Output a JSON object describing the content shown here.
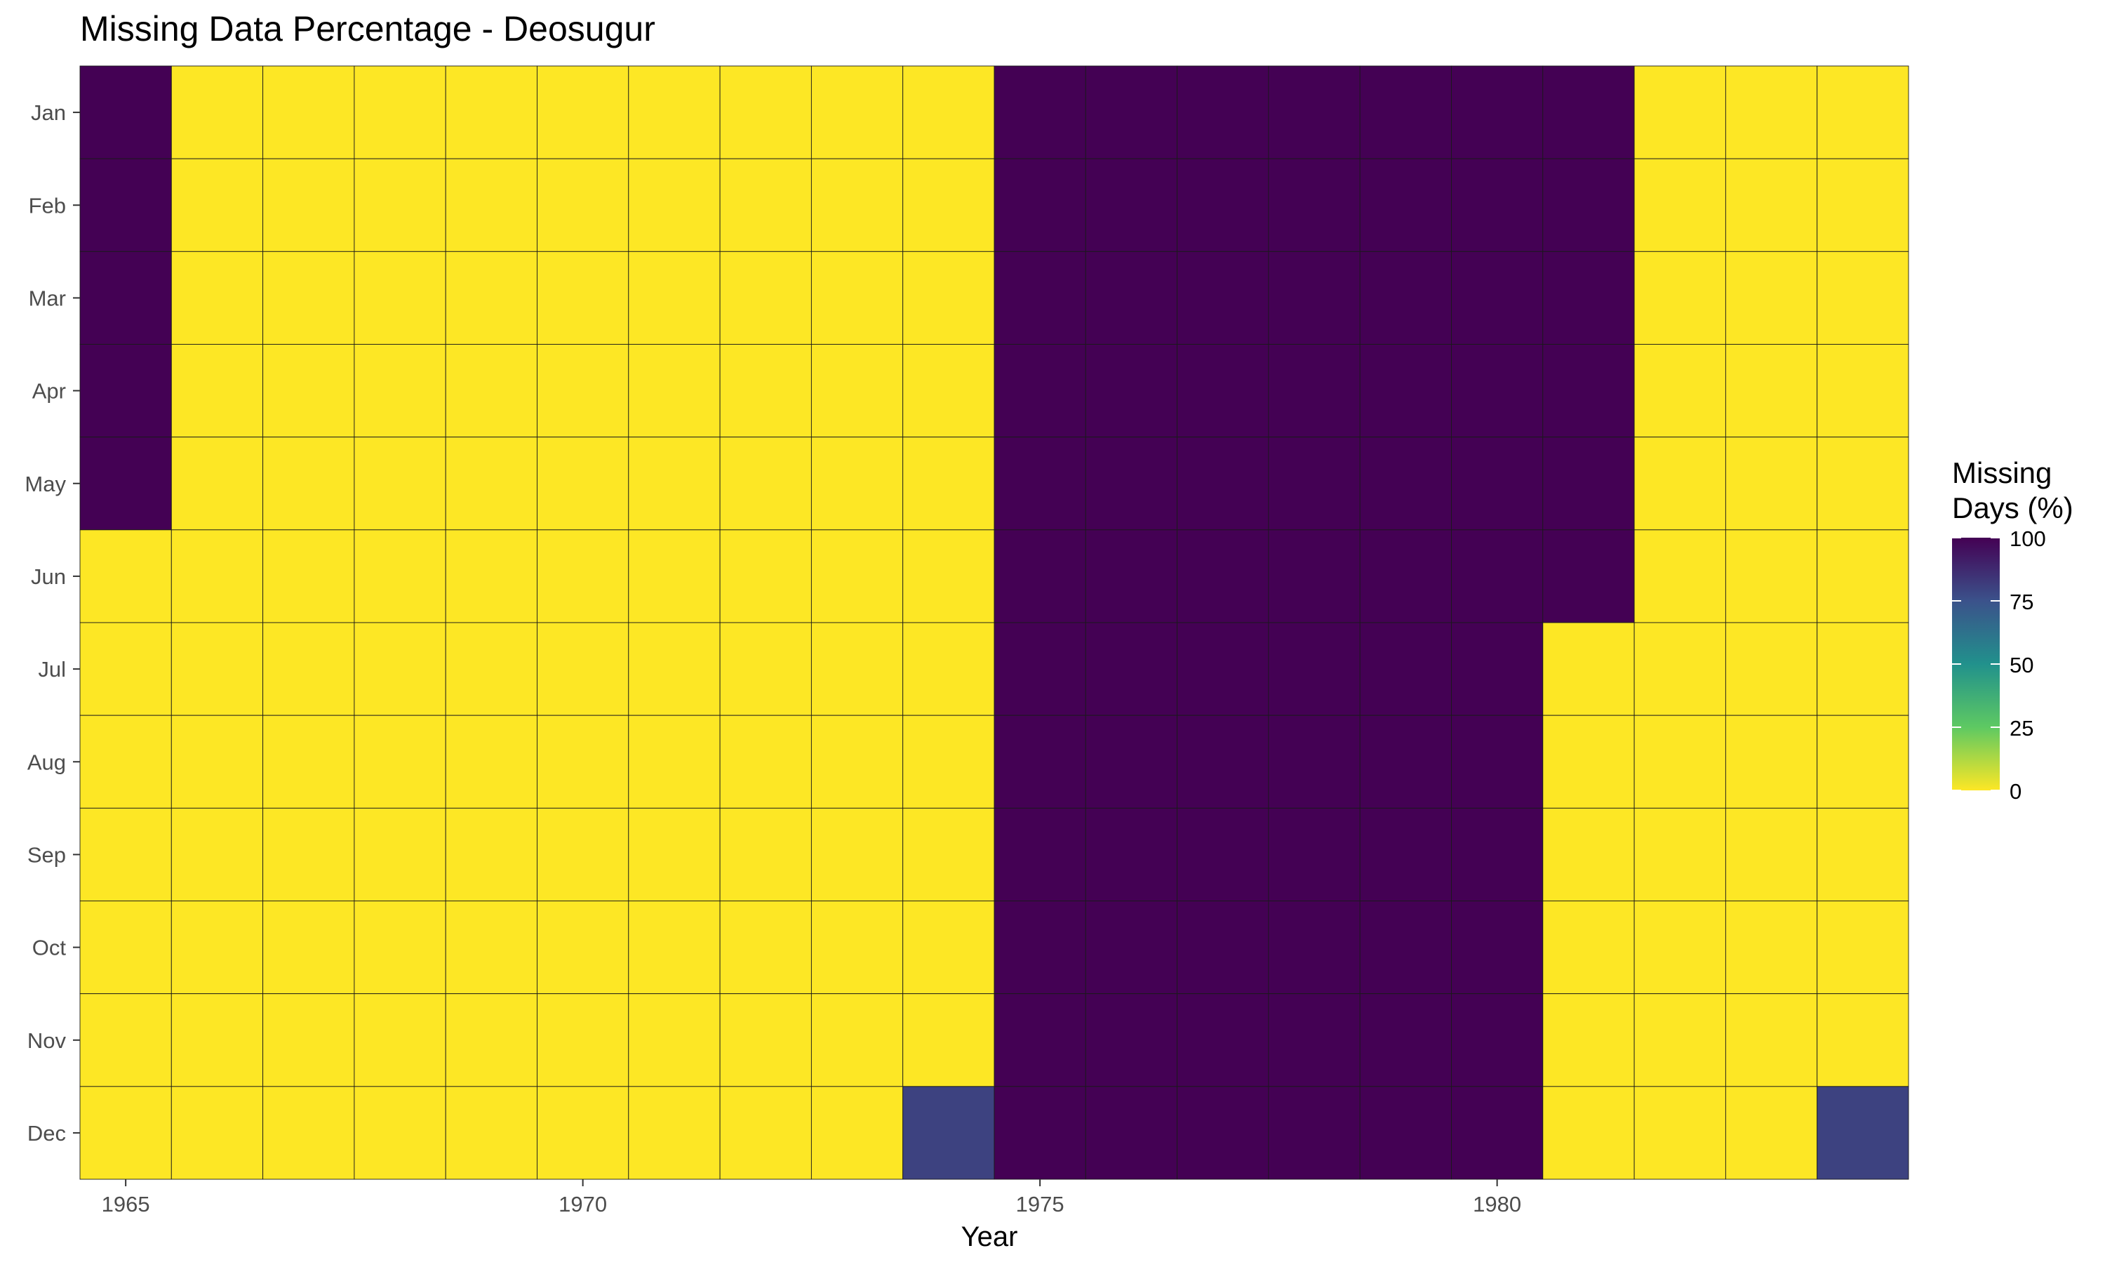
{
  "chart_data": {
    "type": "heatmap",
    "title": "Missing Data Percentage - Deosugur",
    "xlabel": "Year",
    "ylabel": "",
    "x": [
      1965,
      1966,
      1967,
      1968,
      1969,
      1970,
      1971,
      1972,
      1973,
      1974,
      1975,
      1976,
      1977,
      1978,
      1979,
      1980,
      1981,
      1982,
      1983,
      1984
    ],
    "x_ticks": [
      "1965",
      "1970",
      "1975",
      "1980"
    ],
    "y": [
      "Jan",
      "Feb",
      "Mar",
      "Apr",
      "May",
      "Jun",
      "Jul",
      "Aug",
      "Sep",
      "Oct",
      "Nov",
      "Dec"
    ],
    "values_by_year": [
      [
        100,
        100,
        100,
        100,
        100,
        0,
        0,
        0,
        0,
        0,
        0,
        0
      ],
      [
        0,
        0,
        0,
        0,
        0,
        0,
        0,
        0,
        0,
        0,
        0,
        0
      ],
      [
        0,
        0,
        0,
        0,
        0,
        0,
        0,
        0,
        0,
        0,
        0,
        0
      ],
      [
        0,
        0,
        0,
        0,
        0,
        0,
        0,
        0,
        0,
        0,
        0,
        0
      ],
      [
        0,
        0,
        0,
        0,
        0,
        0,
        0,
        0,
        0,
        0,
        0,
        0
      ],
      [
        0,
        0,
        0,
        0,
        0,
        0,
        0,
        0,
        0,
        0,
        0,
        0
      ],
      [
        0,
        0,
        0,
        0,
        0,
        0,
        0,
        0,
        0,
        0,
        0,
        0
      ],
      [
        0,
        0,
        0,
        0,
        0,
        0,
        0,
        0,
        0,
        0,
        0,
        0
      ],
      [
        0,
        0,
        0,
        0,
        0,
        0,
        0,
        0,
        0,
        0,
        0,
        0
      ],
      [
        0,
        0,
        0,
        0,
        0,
        0,
        0,
        0,
        0,
        0,
        0,
        80
      ],
      [
        100,
        100,
        100,
        100,
        100,
        100,
        100,
        100,
        100,
        100,
        100,
        100
      ],
      [
        100,
        100,
        100,
        100,
        100,
        100,
        100,
        100,
        100,
        100,
        100,
        100
      ],
      [
        100,
        100,
        100,
        100,
        100,
        100,
        100,
        100,
        100,
        100,
        100,
        100
      ],
      [
        100,
        100,
        100,
        100,
        100,
        100,
        100,
        100,
        100,
        100,
        100,
        100
      ],
      [
        100,
        100,
        100,
        100,
        100,
        100,
        100,
        100,
        100,
        100,
        100,
        100
      ],
      [
        100,
        100,
        100,
        100,
        100,
        100,
        100,
        100,
        100,
        100,
        100,
        100
      ],
      [
        100,
        100,
        100,
        100,
        100,
        100,
        0,
        0,
        0,
        0,
        0,
        0
      ],
      [
        0,
        0,
        0,
        0,
        0,
        0,
        0,
        0,
        0,
        0,
        0,
        0
      ],
      [
        0,
        0,
        0,
        0,
        0,
        0,
        0,
        0,
        0,
        0,
        0,
        0
      ],
      [
        0,
        0,
        0,
        0,
        0,
        0,
        0,
        0,
        0,
        0,
        0,
        80
      ]
    ],
    "value_range": [
      0,
      100
    ],
    "legend": {
      "title_lines": [
        "Missing",
        "Days (%)"
      ],
      "ticks": [
        "100",
        "75",
        "50",
        "25",
        "0"
      ],
      "position": "right"
    },
    "colorscale": [
      "#fde725",
      "#5ec962",
      "#21918c",
      "#3b528b",
      "#440154"
    ],
    "grid": true
  }
}
